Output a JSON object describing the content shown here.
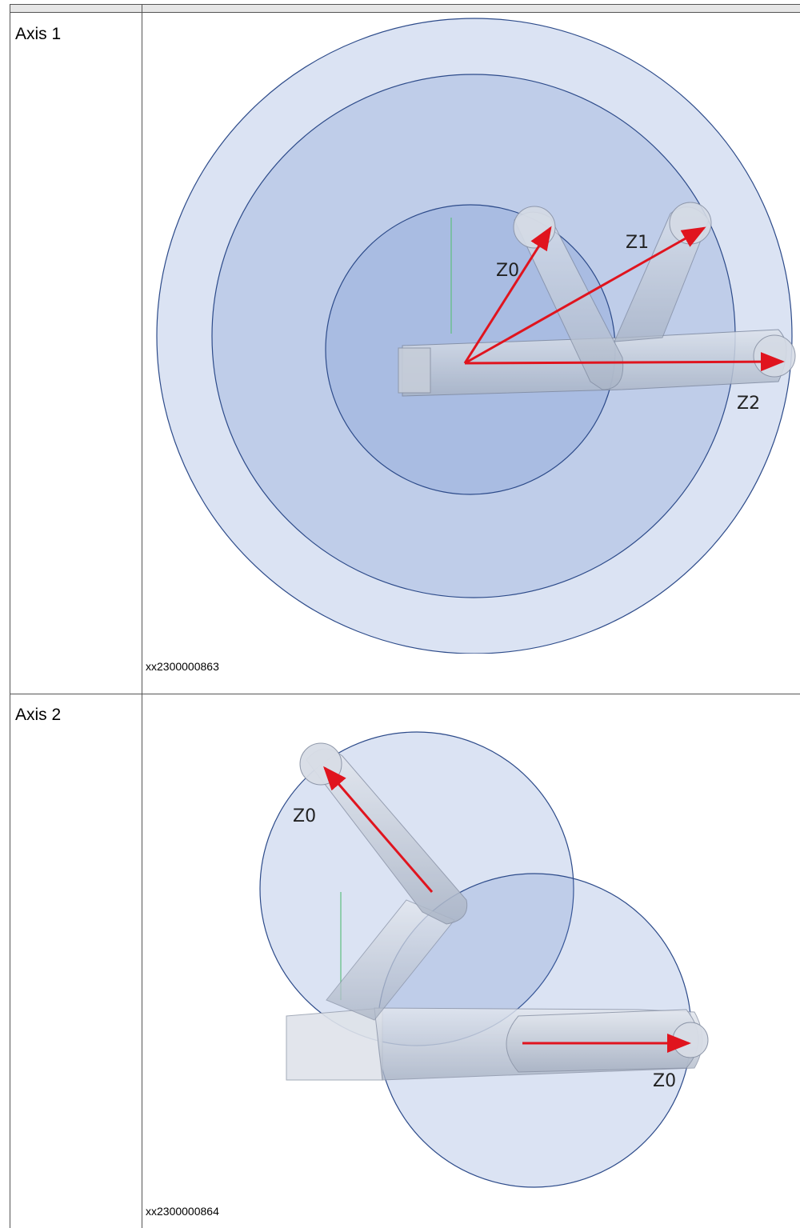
{
  "table": {
    "rows": [
      {
        "label": "Axis 1",
        "figure_id": "xx2300000863",
        "zone_labels": [
          "Z0",
          "Z1",
          "Z2"
        ]
      },
      {
        "label": "Axis 2",
        "figure_id": "xx2300000864",
        "zone_labels": [
          "Z0",
          "Z0"
        ]
      }
    ]
  },
  "colors": {
    "zone_fill": "#5b7fc8",
    "zone_stroke": "#2d4b8a",
    "arrow": "#e0141e",
    "robot": "#c9d0dc",
    "grid_line": "#999999"
  }
}
